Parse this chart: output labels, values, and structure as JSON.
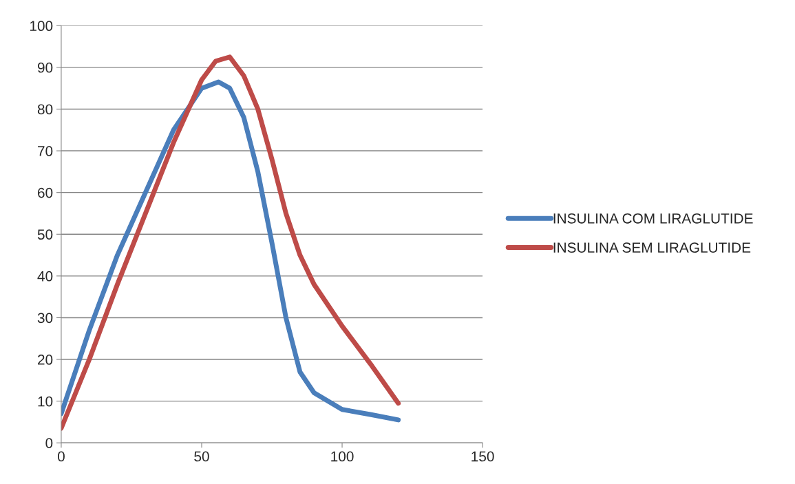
{
  "chart_data": {
    "type": "line",
    "xlim": [
      0,
      150
    ],
    "xticks": [
      0,
      50,
      100,
      150
    ],
    "ylim": [
      0,
      100
    ],
    "yticks": [
      0,
      10,
      20,
      30,
      40,
      50,
      60,
      70,
      80,
      90,
      100
    ],
    "grid": "y",
    "legend": "right",
    "marker": "none",
    "line_style": "solid",
    "series": [
      {
        "name": "INSULINA COM LIRAGLUTIDE",
        "color": "#4a7ebb",
        "x": [
          0,
          10,
          20,
          30,
          40,
          50,
          56,
          60,
          65,
          70,
          75,
          80,
          85,
          90,
          100,
          110,
          120
        ],
        "values": [
          7,
          27,
          45,
          60,
          75,
          85,
          86.5,
          85,
          78,
          65,
          48,
          30,
          17,
          12,
          8,
          6.8,
          5.5
        ]
      },
      {
        "name": "INSULINA SEM LIRAGLUTIDE",
        "color": "#be4b48",
        "x": [
          0,
          10,
          20,
          30,
          40,
          50,
          55,
          60,
          65,
          70,
          75,
          80,
          85,
          90,
          100,
          110,
          120
        ],
        "values": [
          3.5,
          20,
          38,
          55,
          72,
          87,
          91.5,
          92.5,
          88,
          80,
          68,
          55,
          45,
          38,
          28,
          19,
          9.5
        ]
      }
    ]
  }
}
